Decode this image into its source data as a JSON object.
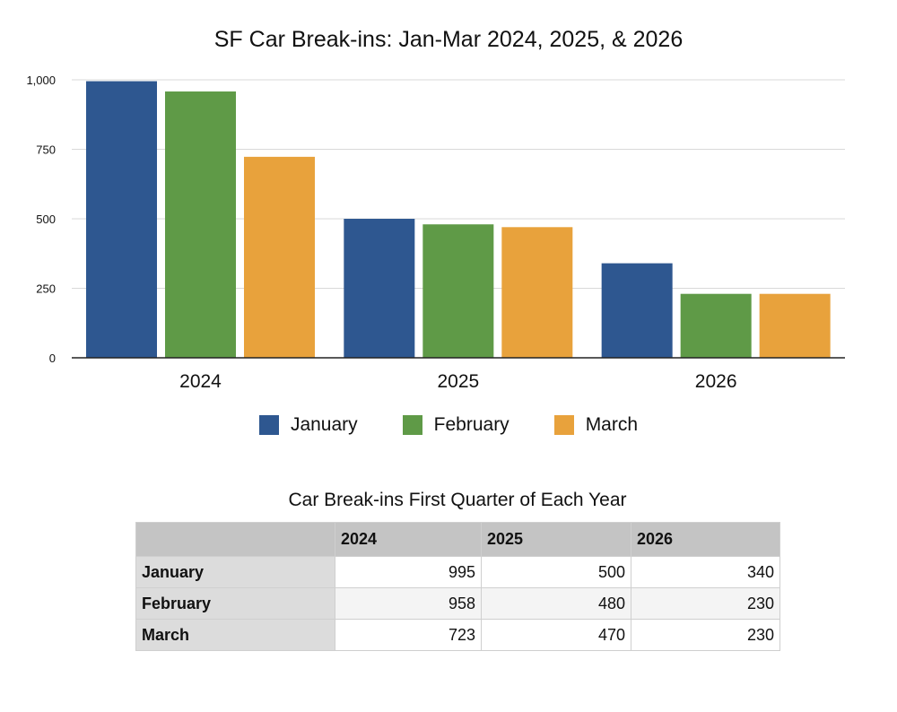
{
  "chart_data": {
    "type": "bar",
    "title": "SF Car Break-ins: Jan-Mar 2024, 2025, & 2026",
    "categories": [
      "2024",
      "2025",
      "2026"
    ],
    "series": [
      {
        "name": "January",
        "values": [
          995,
          500,
          340
        ],
        "color": "#2e5790"
      },
      {
        "name": "February",
        "values": [
          958,
          480,
          230
        ],
        "color": "#5f9a47"
      },
      {
        "name": "March",
        "values": [
          723,
          470,
          230
        ],
        "color": "#e8a23c"
      }
    ],
    "ylim": [
      0,
      1000
    ],
    "yticks": [
      0,
      250,
      500,
      750,
      1000
    ],
    "ytick_labels": [
      "0",
      "250",
      "500",
      "750",
      "1,000"
    ],
    "grid": true,
    "legend": "bottom"
  },
  "table": {
    "title": "Car Break-ins First Quarter of Each Year",
    "columns": [
      "",
      "2024",
      "2025",
      "2026"
    ],
    "rows": [
      {
        "label": "January",
        "values": [
          "995",
          "500",
          "340"
        ]
      },
      {
        "label": "February",
        "values": [
          "958",
          "480",
          "230"
        ]
      },
      {
        "label": "March",
        "values": [
          "723",
          "470",
          "230"
        ]
      }
    ]
  }
}
